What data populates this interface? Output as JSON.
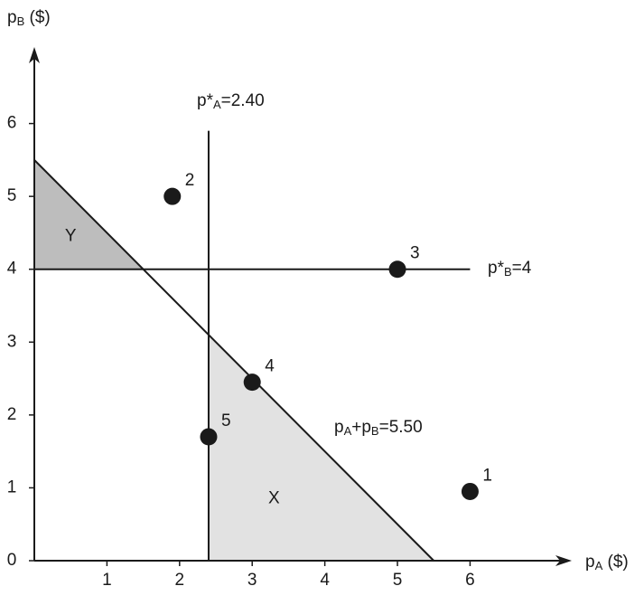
{
  "chart_data": {
    "type": "scatter",
    "xlabel": [
      "p",
      "A",
      " ($)"
    ],
    "ylabel": [
      "p",
      "B",
      " ($)"
    ],
    "xlim": [
      0,
      7.4
    ],
    "ylim": [
      0,
      7.05
    ],
    "xticks": [
      1,
      2,
      3,
      4,
      5,
      6
    ],
    "yticks": [
      0,
      1,
      2,
      3,
      4,
      5,
      6
    ],
    "x": [
      6,
      1.9,
      5,
      3,
      2.4
    ],
    "values": [
      0.95,
      5,
      4,
      2.45,
      1.7
    ],
    "point_labels": [
      "1",
      "2",
      "3",
      "4",
      "5"
    ],
    "color": "#1a1a1a",
    "vline": {
      "value": 2.4,
      "label": [
        "p*",
        "A",
        "=2.40"
      ]
    },
    "hline": {
      "value": 4,
      "label": [
        "p*",
        "B",
        "=4"
      ]
    },
    "budget_line": {
      "value": 5.5,
      "label": [
        "p",
        "A",
        "+p",
        "B",
        "=5.50"
      ]
    },
    "regions": [
      "X",
      "Y"
    ],
    "region_colors": [
      "#e2e2e2",
      "#bdbdbd"
    ]
  }
}
